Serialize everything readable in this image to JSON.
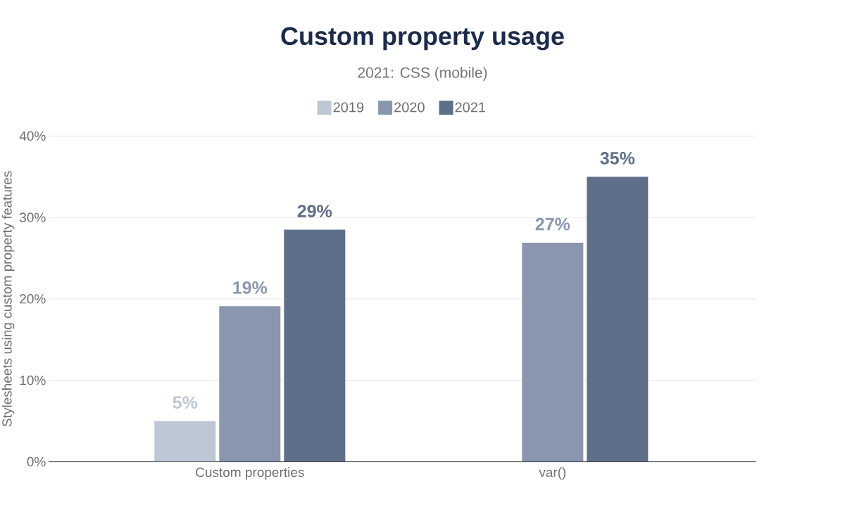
{
  "chart_data": {
    "type": "bar",
    "title": "Custom property usage",
    "subtitle": "2021: CSS (mobile)",
    "ylabel": "Stylesheets using custom property features",
    "categories": [
      "Custom properties",
      "var()"
    ],
    "series": [
      {
        "name": "2019",
        "color": "#bec7d5",
        "values": [
          5,
          null
        ],
        "value_labels": [
          "5%",
          null
        ]
      },
      {
        "name": "2020",
        "color": "#8a96ad",
        "values": [
          19.1,
          26.9
        ],
        "value_labels": [
          "19%",
          "27%"
        ]
      },
      {
        "name": "2021",
        "color": "#5f6f8a",
        "values": [
          28.5,
          35
        ],
        "value_labels": [
          "29%",
          "35%"
        ]
      }
    ],
    "ylim": [
      0,
      40
    ],
    "yticks": [
      {
        "value": 0,
        "label": "0%"
      },
      {
        "value": 10,
        "label": "10%"
      },
      {
        "value": 20,
        "label": "20%"
      },
      {
        "value": 30,
        "label": "30%"
      },
      {
        "value": 40,
        "label": "40%"
      }
    ],
    "grid": "y",
    "legend": "top"
  }
}
